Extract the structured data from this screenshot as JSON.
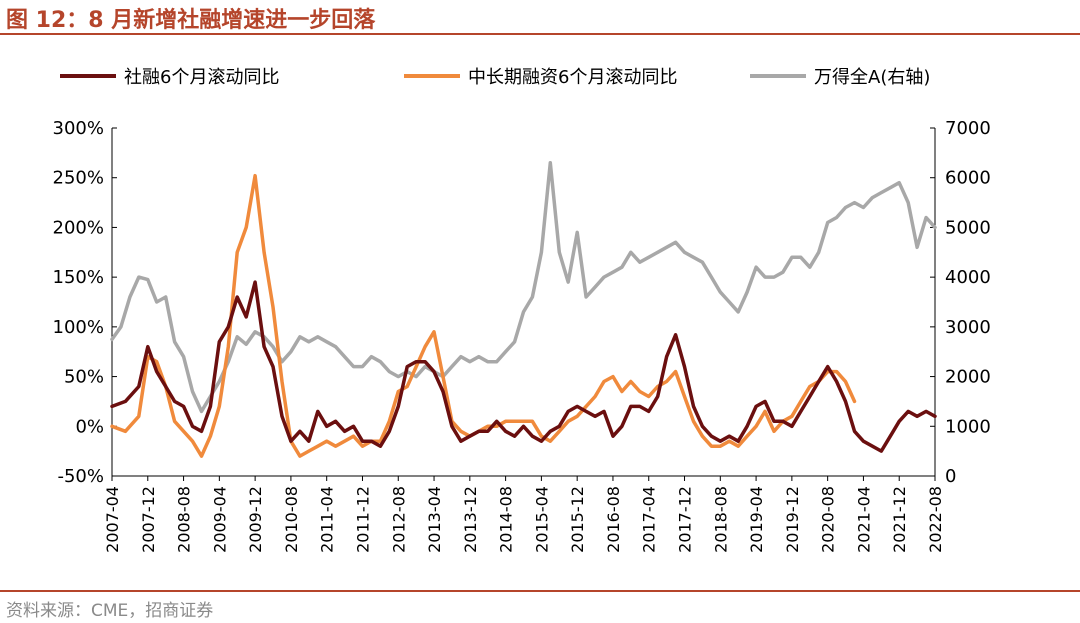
{
  "header": {
    "title": "图 12：8 月新增社融增速进一步回落"
  },
  "footer": {
    "source": "资料来源：CME，招商证券"
  },
  "chart_data": {
    "type": "line",
    "legend_position": "top",
    "left_axis": {
      "ticks": [
        "-50%",
        "0%",
        "50%",
        "100%",
        "150%",
        "200%",
        "250%",
        "300%"
      ],
      "range": [
        -50,
        300
      ],
      "unit": "%"
    },
    "right_axis": {
      "ticks": [
        "0",
        "1000",
        "2000",
        "3000",
        "4000",
        "5000",
        "6000",
        "7000"
      ],
      "range": [
        0,
        7000
      ]
    },
    "x_tick_labels": [
      "2007-04",
      "2007-12",
      "2008-08",
      "2009-04",
      "2009-12",
      "2010-08",
      "2011-04",
      "2011-12",
      "2012-08",
      "2013-04",
      "2013-12",
      "2014-08",
      "2015-04",
      "2015-12",
      "2016-08",
      "2017-04",
      "2017-12",
      "2018-08",
      "2019-04",
      "2019-12",
      "2020-08",
      "2021-04",
      "2021-12",
      "2022-08"
    ],
    "x_range": [
      "2007-04",
      "2022-08"
    ],
    "series": [
      {
        "name": "社融6个月滚动同比",
        "color": "#6b0f0f",
        "axis": "left",
        "points": [
          [
            "2007-04",
            20
          ],
          [
            "2007-07",
            25
          ],
          [
            "2007-10",
            40
          ],
          [
            "2007-12",
            80
          ],
          [
            "2008-02",
            55
          ],
          [
            "2008-04",
            40
          ],
          [
            "2008-06",
            25
          ],
          [
            "2008-08",
            20
          ],
          [
            "2008-10",
            0
          ],
          [
            "2008-12",
            -5
          ],
          [
            "2009-02",
            20
          ],
          [
            "2009-04",
            85
          ],
          [
            "2009-06",
            100
          ],
          [
            "2009-08",
            130
          ],
          [
            "2009-10",
            110
          ],
          [
            "2009-12",
            145
          ],
          [
            "2010-02",
            80
          ],
          [
            "2010-04",
            60
          ],
          [
            "2010-06",
            10
          ],
          [
            "2010-08",
            -15
          ],
          [
            "2010-10",
            -5
          ],
          [
            "2010-12",
            -15
          ],
          [
            "2011-02",
            15
          ],
          [
            "2011-04",
            0
          ],
          [
            "2011-06",
            5
          ],
          [
            "2011-08",
            -5
          ],
          [
            "2011-10",
            0
          ],
          [
            "2011-12",
            -15
          ],
          [
            "2012-02",
            -15
          ],
          [
            "2012-04",
            -20
          ],
          [
            "2012-06",
            -5
          ],
          [
            "2012-08",
            20
          ],
          [
            "2012-10",
            60
          ],
          [
            "2012-12",
            65
          ],
          [
            "2013-02",
            65
          ],
          [
            "2013-04",
            55
          ],
          [
            "2013-06",
            35
          ],
          [
            "2013-08",
            0
          ],
          [
            "2013-10",
            -15
          ],
          [
            "2013-12",
            -10
          ],
          [
            "2014-02",
            -5
          ],
          [
            "2014-04",
            -5
          ],
          [
            "2014-06",
            5
          ],
          [
            "2014-08",
            -5
          ],
          [
            "2014-10",
            -10
          ],
          [
            "2014-12",
            0
          ],
          [
            "2015-02",
            -10
          ],
          [
            "2015-04",
            -15
          ],
          [
            "2015-06",
            -5
          ],
          [
            "2015-08",
            0
          ],
          [
            "2015-10",
            15
          ],
          [
            "2015-12",
            20
          ],
          [
            "2016-02",
            15
          ],
          [
            "2016-04",
            10
          ],
          [
            "2016-06",
            15
          ],
          [
            "2016-08",
            -10
          ],
          [
            "2016-10",
            0
          ],
          [
            "2016-12",
            20
          ],
          [
            "2017-02",
            20
          ],
          [
            "2017-04",
            15
          ],
          [
            "2017-06",
            30
          ],
          [
            "2017-08",
            70
          ],
          [
            "2017-10",
            92
          ],
          [
            "2017-12",
            60
          ],
          [
            "2018-02",
            20
          ],
          [
            "2018-04",
            0
          ],
          [
            "2018-06",
            -10
          ],
          [
            "2018-08",
            -15
          ],
          [
            "2018-10",
            -10
          ],
          [
            "2018-12",
            -15
          ],
          [
            "2019-02",
            0
          ],
          [
            "2019-04",
            20
          ],
          [
            "2019-06",
            25
          ],
          [
            "2019-08",
            5
          ],
          [
            "2019-10",
            5
          ],
          [
            "2019-12",
            0
          ],
          [
            "2020-02",
            15
          ],
          [
            "2020-04",
            30
          ],
          [
            "2020-06",
            45
          ],
          [
            "2020-08",
            60
          ],
          [
            "2020-10",
            45
          ],
          [
            "2020-12",
            25
          ],
          [
            "2021-02",
            -5
          ],
          [
            "2021-04",
            -15
          ],
          [
            "2021-06",
            -20
          ],
          [
            "2021-08",
            -25
          ],
          [
            "2021-10",
            -10
          ],
          [
            "2021-12",
            5
          ],
          [
            "2022-02",
            15
          ],
          [
            "2022-04",
            10
          ],
          [
            "2022-06",
            15
          ],
          [
            "2022-08",
            10
          ]
        ]
      },
      {
        "name": "中长期融资6个月滚动同比",
        "color": "#f08a3c",
        "axis": "left",
        "points": [
          [
            "2007-04",
            0
          ],
          [
            "2007-07",
            -5
          ],
          [
            "2007-10",
            10
          ],
          [
            "2007-12",
            70
          ],
          [
            "2008-02",
            65
          ],
          [
            "2008-04",
            40
          ],
          [
            "2008-06",
            5
          ],
          [
            "2008-08",
            -5
          ],
          [
            "2008-10",
            -15
          ],
          [
            "2008-12",
            -30
          ],
          [
            "2009-02",
            -10
          ],
          [
            "2009-04",
            20
          ],
          [
            "2009-06",
            80
          ],
          [
            "2009-08",
            175
          ],
          [
            "2009-10",
            200
          ],
          [
            "2009-12",
            252
          ],
          [
            "2010-02",
            175
          ],
          [
            "2010-04",
            120
          ],
          [
            "2010-06",
            45
          ],
          [
            "2010-08",
            -15
          ],
          [
            "2010-10",
            -30
          ],
          [
            "2010-12",
            -25
          ],
          [
            "2011-02",
            -20
          ],
          [
            "2011-04",
            -15
          ],
          [
            "2011-06",
            -20
          ],
          [
            "2011-08",
            -15
          ],
          [
            "2011-10",
            -10
          ],
          [
            "2011-12",
            -20
          ],
          [
            "2012-02",
            -15
          ],
          [
            "2012-04",
            -15
          ],
          [
            "2012-06",
            5
          ],
          [
            "2012-08",
            35
          ],
          [
            "2012-10",
            40
          ],
          [
            "2012-12",
            60
          ],
          [
            "2013-02",
            80
          ],
          [
            "2013-04",
            95
          ],
          [
            "2013-06",
            50
          ],
          [
            "2013-08",
            5
          ],
          [
            "2013-10",
            -5
          ],
          [
            "2013-12",
            -10
          ],
          [
            "2014-02",
            -5
          ],
          [
            "2014-04",
            0
          ],
          [
            "2014-06",
            0
          ],
          [
            "2014-08",
            5
          ],
          [
            "2014-10",
            5
          ],
          [
            "2014-12",
            5
          ],
          [
            "2015-02",
            5
          ],
          [
            "2015-04",
            -10
          ],
          [
            "2015-06",
            -15
          ],
          [
            "2015-08",
            -5
          ],
          [
            "2015-10",
            5
          ],
          [
            "2015-12",
            10
          ],
          [
            "2016-02",
            20
          ],
          [
            "2016-04",
            30
          ],
          [
            "2016-06",
            45
          ],
          [
            "2016-08",
            50
          ],
          [
            "2016-10",
            35
          ],
          [
            "2016-12",
            45
          ],
          [
            "2017-02",
            35
          ],
          [
            "2017-04",
            30
          ],
          [
            "2017-06",
            40
          ],
          [
            "2017-08",
            45
          ],
          [
            "2017-10",
            55
          ],
          [
            "2017-12",
            30
          ],
          [
            "2018-02",
            5
          ],
          [
            "2018-04",
            -10
          ],
          [
            "2018-06",
            -20
          ],
          [
            "2018-08",
            -20
          ],
          [
            "2018-10",
            -15
          ],
          [
            "2018-12",
            -20
          ],
          [
            "2019-02",
            -10
          ],
          [
            "2019-04",
            0
          ],
          [
            "2019-06",
            15
          ],
          [
            "2019-08",
            -5
          ],
          [
            "2019-10",
            5
          ],
          [
            "2019-12",
            10
          ],
          [
            "2020-02",
            25
          ],
          [
            "2020-04",
            40
          ],
          [
            "2020-06",
            45
          ],
          [
            "2020-08",
            55
          ],
          [
            "2020-10",
            55
          ],
          [
            "2020-12",
            45
          ],
          [
            "2021-02",
            25
          ]
        ]
      },
      {
        "name": "万得全A(右轴)",
        "color": "#a8a8a8",
        "axis": "right",
        "points": [
          [
            "2007-04",
            2750
          ],
          [
            "2007-06",
            3000
          ],
          [
            "2007-08",
            3600
          ],
          [
            "2007-10",
            4000
          ],
          [
            "2007-12",
            3950
          ],
          [
            "2008-02",
            3500
          ],
          [
            "2008-04",
            3600
          ],
          [
            "2008-06",
            2700
          ],
          [
            "2008-08",
            2400
          ],
          [
            "2008-10",
            1700
          ],
          [
            "2008-12",
            1300
          ],
          [
            "2009-02",
            1600
          ],
          [
            "2009-04",
            1900
          ],
          [
            "2009-06",
            2300
          ],
          [
            "2009-08",
            2800
          ],
          [
            "2009-10",
            2650
          ],
          [
            "2009-12",
            2900
          ],
          [
            "2010-02",
            2800
          ],
          [
            "2010-04",
            2600
          ],
          [
            "2010-06",
            2300
          ],
          [
            "2010-08",
            2500
          ],
          [
            "2010-10",
            2800
          ],
          [
            "2010-12",
            2700
          ],
          [
            "2011-02",
            2800
          ],
          [
            "2011-04",
            2700
          ],
          [
            "2011-06",
            2600
          ],
          [
            "2011-08",
            2400
          ],
          [
            "2011-10",
            2200
          ],
          [
            "2011-12",
            2200
          ],
          [
            "2012-02",
            2400
          ],
          [
            "2012-04",
            2300
          ],
          [
            "2012-06",
            2100
          ],
          [
            "2012-08",
            2000
          ],
          [
            "2012-10",
            2100
          ],
          [
            "2012-12",
            2000
          ],
          [
            "2013-02",
            2200
          ],
          [
            "2013-04",
            2100
          ],
          [
            "2013-06",
            2000
          ],
          [
            "2013-08",
            2200
          ],
          [
            "2013-10",
            2400
          ],
          [
            "2013-12",
            2300
          ],
          [
            "2014-02",
            2400
          ],
          [
            "2014-04",
            2300
          ],
          [
            "2014-06",
            2300
          ],
          [
            "2014-08",
            2500
          ],
          [
            "2014-10",
            2700
          ],
          [
            "2014-12",
            3300
          ],
          [
            "2015-02",
            3600
          ],
          [
            "2015-04",
            4500
          ],
          [
            "2015-06",
            6300
          ],
          [
            "2015-08",
            4500
          ],
          [
            "2015-10",
            3900
          ],
          [
            "2015-12",
            4900
          ],
          [
            "2016-02",
            3600
          ],
          [
            "2016-04",
            3800
          ],
          [
            "2016-06",
            4000
          ],
          [
            "2016-08",
            4100
          ],
          [
            "2016-10",
            4200
          ],
          [
            "2016-12",
            4500
          ],
          [
            "2017-02",
            4300
          ],
          [
            "2017-04",
            4400
          ],
          [
            "2017-06",
            4500
          ],
          [
            "2017-08",
            4600
          ],
          [
            "2017-10",
            4700
          ],
          [
            "2017-12",
            4500
          ],
          [
            "2018-02",
            4400
          ],
          [
            "2018-04",
            4300
          ],
          [
            "2018-06",
            4000
          ],
          [
            "2018-08",
            3700
          ],
          [
            "2018-10",
            3500
          ],
          [
            "2018-12",
            3300
          ],
          [
            "2019-02",
            3700
          ],
          [
            "2019-04",
            4200
          ],
          [
            "2019-06",
            4000
          ],
          [
            "2019-08",
            4000
          ],
          [
            "2019-10",
            4100
          ],
          [
            "2019-12",
            4400
          ],
          [
            "2020-02",
            4400
          ],
          [
            "2020-04",
            4200
          ],
          [
            "2020-06",
            4500
          ],
          [
            "2020-08",
            5100
          ],
          [
            "2020-10",
            5200
          ],
          [
            "2020-12",
            5400
          ],
          [
            "2021-02",
            5500
          ],
          [
            "2021-04",
            5400
          ],
          [
            "2021-06",
            5600
          ],
          [
            "2021-08",
            5700
          ],
          [
            "2021-10",
            5800
          ],
          [
            "2021-12",
            5900
          ],
          [
            "2022-02",
            5500
          ],
          [
            "2022-04",
            4600
          ],
          [
            "2022-06",
            5200
          ],
          [
            "2022-08",
            5000
          ]
        ]
      }
    ]
  }
}
